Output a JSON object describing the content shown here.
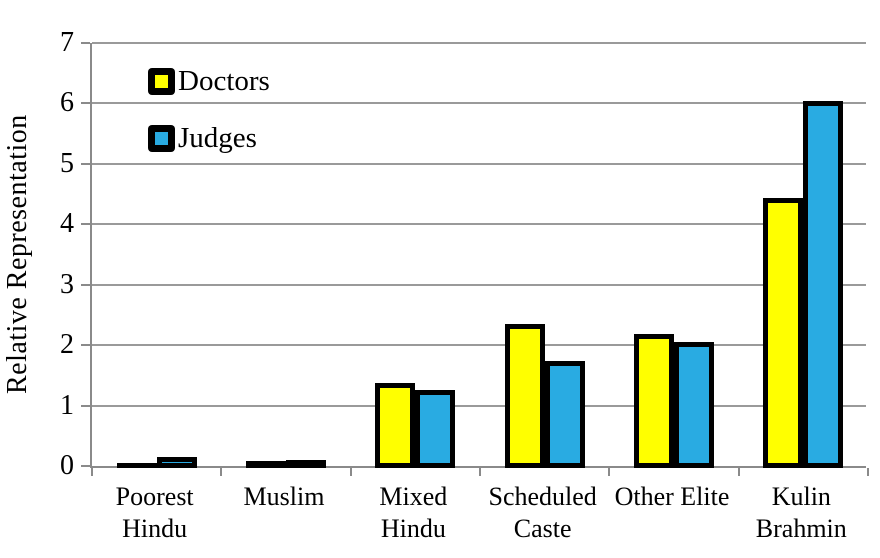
{
  "chart_data": {
    "type": "bar",
    "title": "",
    "ylabel": "Relative Representation",
    "xlabel": "",
    "ylim": [
      0,
      7
    ],
    "yticks": [
      0,
      1,
      2,
      3,
      4,
      5,
      6,
      7
    ],
    "grid": true,
    "legend_position": "inside-top-left",
    "categories": [
      "Poorest Hindu",
      "Muslim",
      "Mixed Hindu",
      "Scheduled Caste",
      "Other Elite",
      "Kulin Brahmin"
    ],
    "category_label_lines": [
      [
        "Poorest",
        "Hindu"
      ],
      [
        "Muslim"
      ],
      [
        "Mixed",
        "Hindu"
      ],
      [
        "Scheduled",
        "Caste"
      ],
      [
        "Other Elite"
      ],
      [
        "Kulin",
        "Brahmin"
      ]
    ],
    "series": [
      {
        "name": "Doctors",
        "color": "#FFFF00",
        "values": [
          0.08,
          0.12,
          1.4,
          2.38,
          2.21,
          4.47
        ]
      },
      {
        "name": "Judges",
        "color": "#29ABE2",
        "values": [
          0.18,
          0.13,
          1.29,
          1.77,
          2.09,
          6.08
        ]
      }
    ],
    "colors": {
      "bar_outline": "#000000",
      "gridline": "#9a9a9a",
      "axis": "#8a8a8a",
      "background": "#ffffff"
    }
  }
}
